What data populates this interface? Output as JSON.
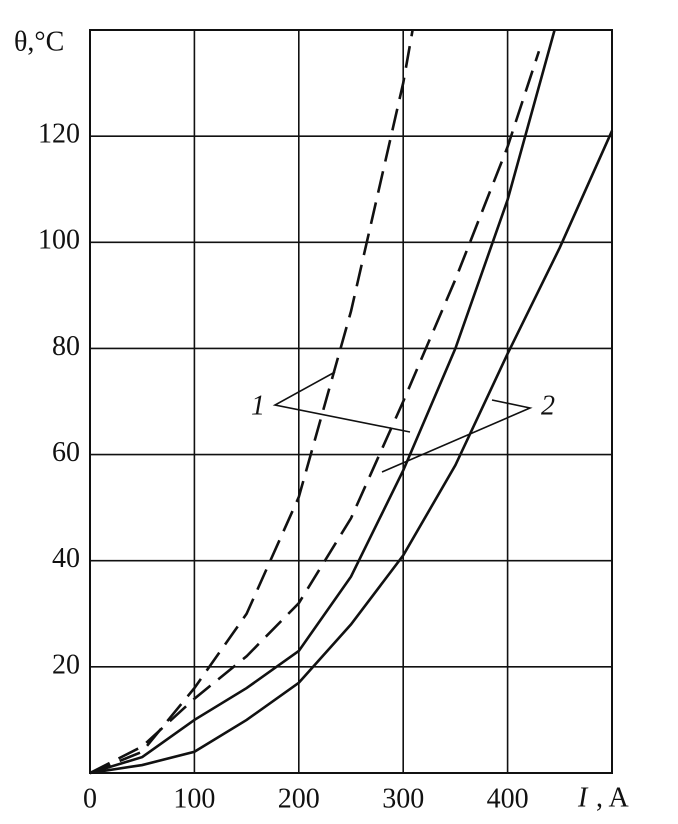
{
  "chart_data": {
    "type": "line",
    "x_label": {
      "italic": "I",
      "rest": ", A"
    },
    "y_label": "θ,°C",
    "xlim": [
      0,
      500
    ],
    "ylim": [
      0,
      140
    ],
    "xticks": [
      0,
      100,
      200,
      300,
      400
    ],
    "yticks": [
      20,
      40,
      60,
      80,
      100,
      120
    ],
    "grid": true,
    "series": [
      {
        "color": "#111111",
        "dashed": true,
        "x": [
          0,
          50,
          100,
          150,
          200,
          250,
          300,
          309
        ],
        "values": [
          0,
          4,
          16,
          30,
          52,
          87,
          130,
          140
        ]
      },
      {
        "color": "#111111",
        "dashed": true,
        "x": [
          0,
          50,
          100,
          150,
          200,
          250,
          300,
          350,
          400,
          430
        ],
        "values": [
          0,
          5,
          14,
          22,
          32,
          48,
          70,
          93,
          118,
          136
        ]
      },
      {
        "color": "#111111",
        "dashed": false,
        "x": [
          0,
          50,
          100,
          150,
          200,
          250,
          300,
          350,
          400,
          445
        ],
        "values": [
          0,
          3,
          10,
          16,
          23,
          37,
          57,
          80,
          108,
          140
        ]
      },
      {
        "color": "#111111",
        "dashed": false,
        "x": [
          0,
          50,
          100,
          150,
          200,
          250,
          300,
          350,
          400,
          450,
          500
        ],
        "values": [
          0,
          1.5,
          4,
          10,
          17,
          28,
          41,
          58,
          79,
          99,
          121
        ]
      }
    ],
    "annotations": [
      "1",
      "2"
    ]
  }
}
